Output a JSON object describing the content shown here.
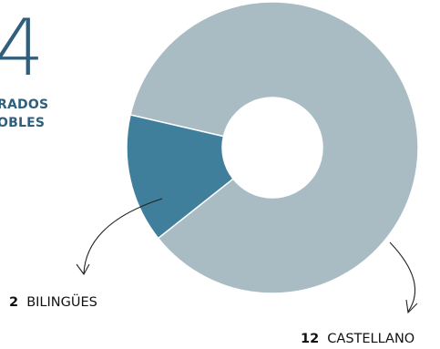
{
  "header": {
    "big_number": "4",
    "subtitle_line1": "RADOS",
    "subtitle_line2": "OBLES"
  },
  "chart_data": {
    "type": "pie",
    "donut": true,
    "series": [
      {
        "name": "CASTELLANO",
        "value": 12,
        "label_value": "12",
        "label_name": "CASTELLANO",
        "color": "#a9bcc4"
      },
      {
        "name": "BILINGÜES",
        "value": 2,
        "label_value": "2",
        "label_name": "BILINGÜES",
        "color": "#3f7f9b"
      }
    ]
  }
}
